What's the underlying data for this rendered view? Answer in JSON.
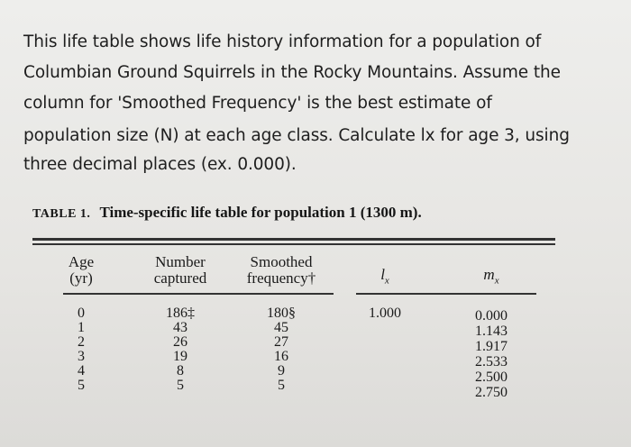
{
  "question": {
    "lines": [
      "This life table shows life history information for a population of",
      "Columbian Ground Squirrels in the Rocky Mountains. Assume the",
      "column for 'Smoothed Frequency' is the best estimate of",
      "population size (N) at each age class. Calculate lx for age 3, using",
      "three decimal places (ex. 0.000)."
    ]
  },
  "table": {
    "label": "TABLE 1.",
    "caption": "Time-specific life table for population 1 (1300 m).",
    "headers": {
      "age": [
        "Age",
        "(yr)"
      ],
      "captured": [
        "Number",
        "captured"
      ],
      "smoothed": [
        "Smoothed",
        "frequency†"
      ],
      "lx": {
        "main": "l",
        "sub": "x"
      },
      "mx": {
        "main": "m",
        "sub": "x"
      }
    },
    "rows": [
      {
        "age": "0",
        "captured": "186‡",
        "smoothed": "180§",
        "lx": "1.000",
        "mx": "0.000"
      },
      {
        "age": "1",
        "captured": "43",
        "smoothed": "45",
        "mx": "1.143"
      },
      {
        "age": "2",
        "captured": "26",
        "smoothed": "27",
        "mx": "1.917"
      },
      {
        "age": "3",
        "captured": "19",
        "smoothed": "16",
        "mx": "2.533"
      },
      {
        "age": "4",
        "captured": "8",
        "smoothed": "9",
        "mx": "2.500"
      },
      {
        "age": "5",
        "captured": "5",
        "smoothed": "5",
        "mx": "2.750"
      }
    ]
  }
}
